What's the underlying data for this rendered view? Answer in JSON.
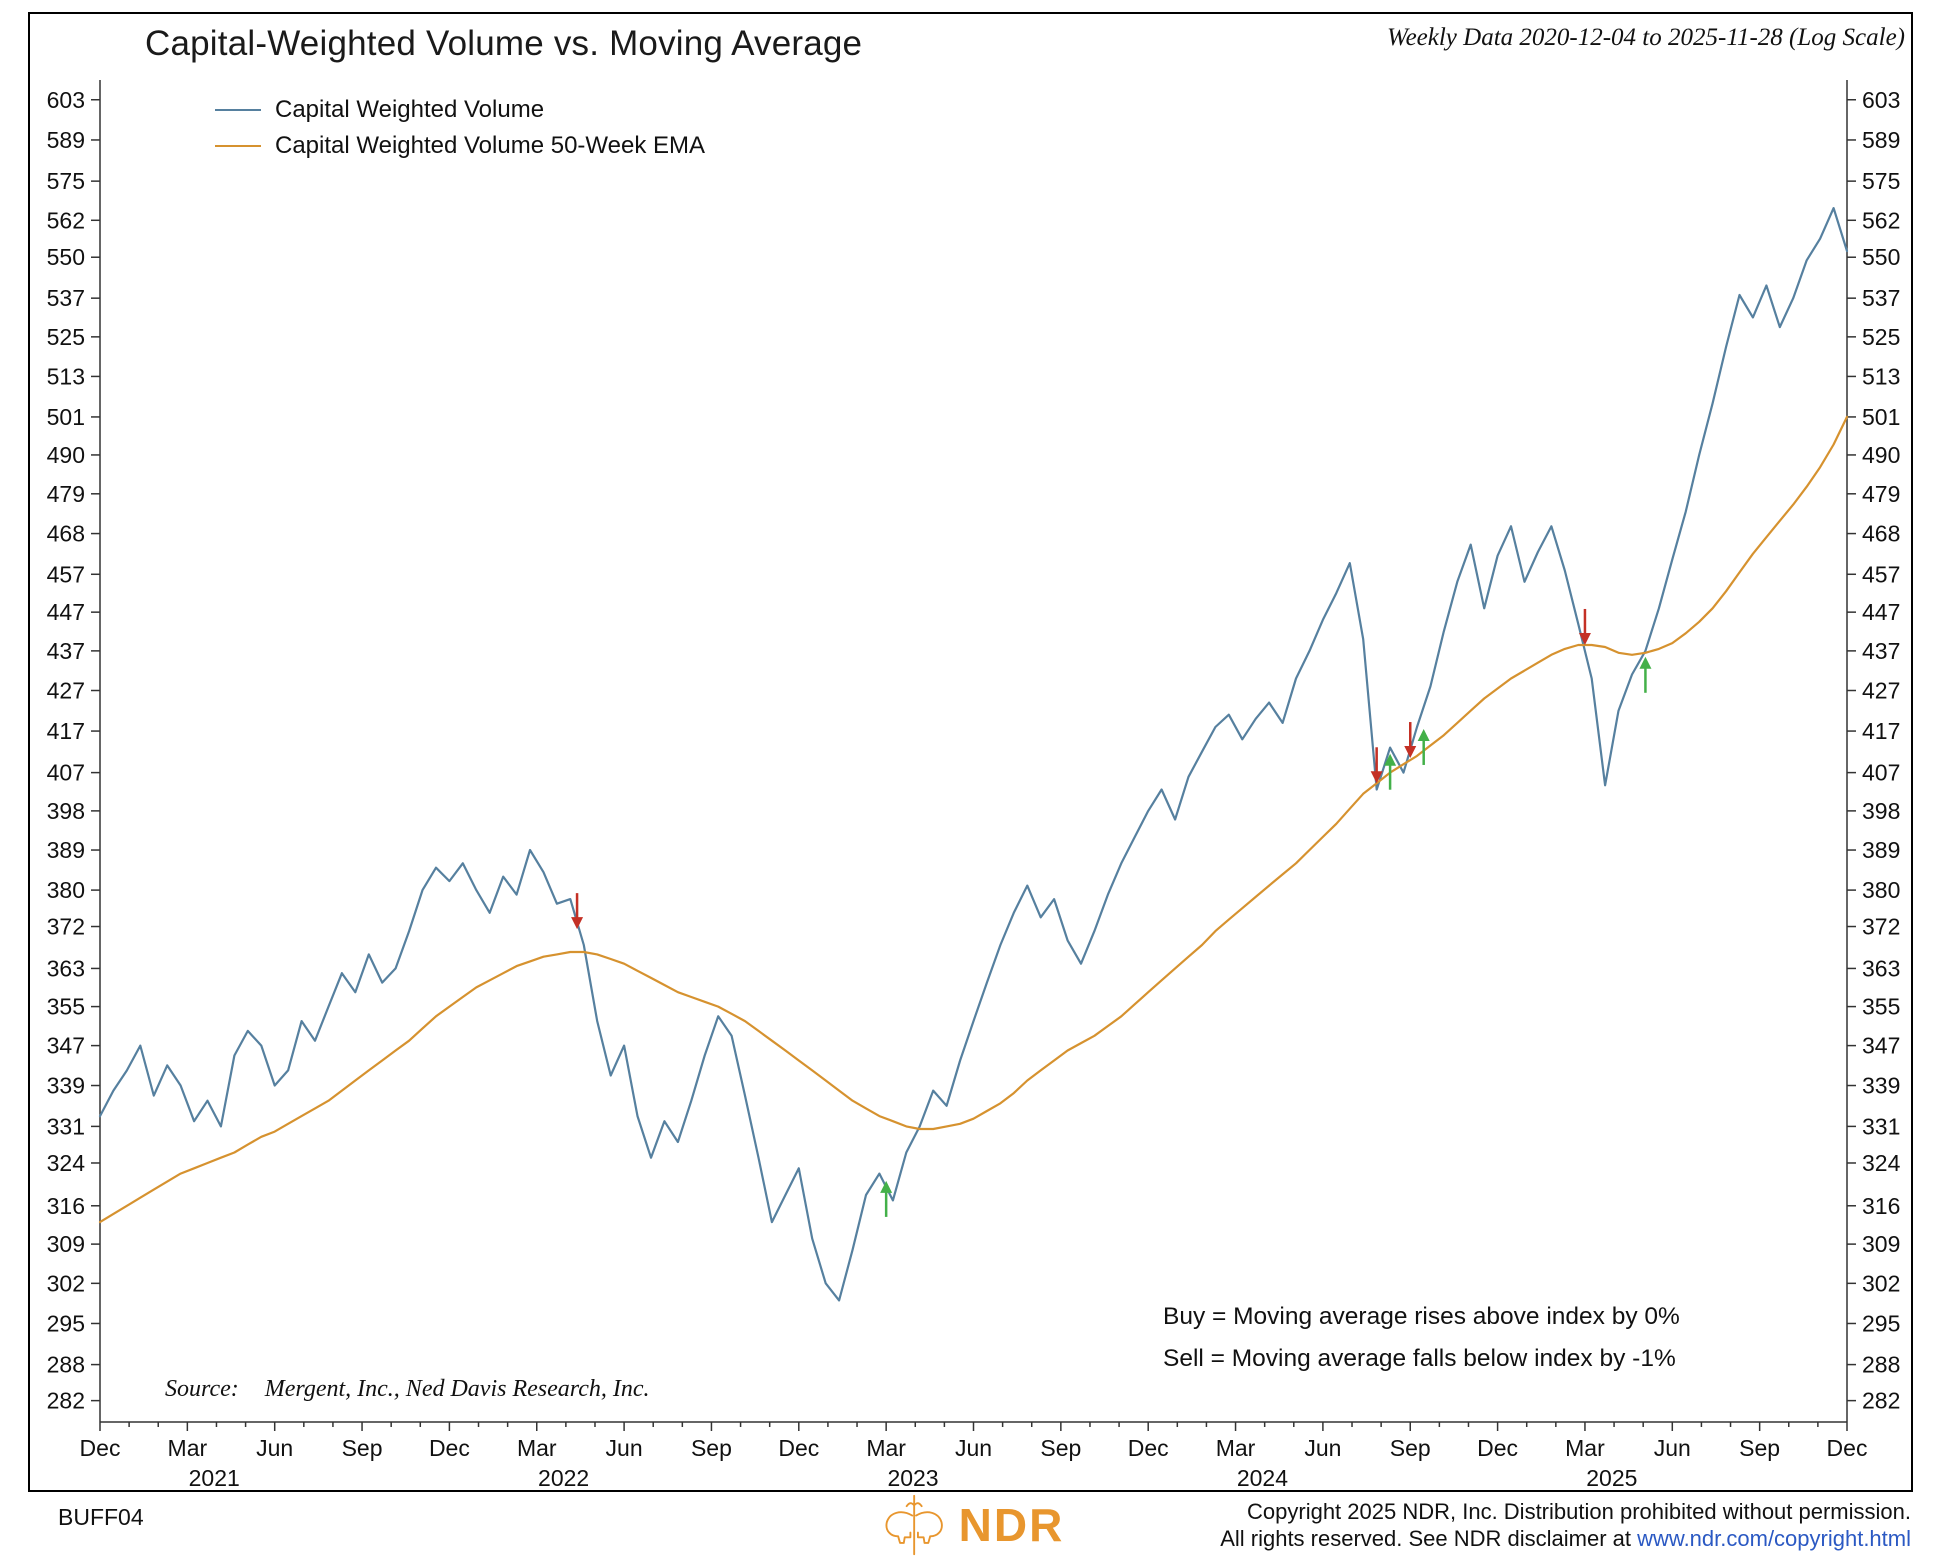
{
  "header": {
    "title": "Capital-Weighted Volume vs. Moving Average",
    "subtitle": "Weekly Data 2020-12-04 to 2025-11-28 (Log Scale)"
  },
  "annotations": {
    "buy_rule": "Buy = Moving average rises above index by 0%",
    "sell_rule": "Sell = Moving average falls below index by -1%",
    "source_label": "Source:",
    "source_text": "Mergent, Inc., Ned Davis Research, Inc."
  },
  "footer": {
    "chart_id": "BUFF04",
    "logo_text": "NDR",
    "logo_color": "#e8962e",
    "copyright_line1": "Copyright 2025 NDR, Inc. Distribution prohibited without permission.",
    "copyright_line2_prefix": "All rights reserved. See NDR disclaimer at ",
    "copyright_link": "www.ndr.com/copyright.html"
  },
  "chart_data": {
    "type": "line",
    "title": "Capital-Weighted Volume vs. Moving Average",
    "subtitle": "Weekly Data 2020-12-04 to 2025-11-28 (Log Scale)",
    "y_scale": "log",
    "ylim": [
      278.5,
      610
    ],
    "x_unit": "weeks since 2020-12-04",
    "x_max_week": 260,
    "grid": false,
    "legend_position": "top-left",
    "y_ticks": [
      603,
      589,
      575,
      562,
      550,
      537,
      525,
      513,
      501,
      490,
      479,
      468,
      457,
      447,
      437,
      427,
      417,
      407,
      398,
      389,
      380,
      372,
      363,
      355,
      347,
      339,
      331,
      324,
      316,
      309,
      302,
      295,
      288,
      282
    ],
    "x_ticks": [
      {
        "week": 0,
        "label": "Dec"
      },
      {
        "week": 13,
        "label": "Mar"
      },
      {
        "week": 26,
        "label": "Jun"
      },
      {
        "week": 39,
        "label": "Sep"
      },
      {
        "week": 52,
        "label": "Dec"
      },
      {
        "week": 65,
        "label": "Mar"
      },
      {
        "week": 78,
        "label": "Jun"
      },
      {
        "week": 91,
        "label": "Sep"
      },
      {
        "week": 104,
        "label": "Dec"
      },
      {
        "week": 117,
        "label": "Mar"
      },
      {
        "week": 130,
        "label": "Jun"
      },
      {
        "week": 143,
        "label": "Sep"
      },
      {
        "week": 156,
        "label": "Dec"
      },
      {
        "week": 169,
        "label": "Mar"
      },
      {
        "week": 182,
        "label": "Jun"
      },
      {
        "week": 195,
        "label": "Sep"
      },
      {
        "week": 208,
        "label": "Dec"
      },
      {
        "week": 221,
        "label": "Mar"
      },
      {
        "week": 234,
        "label": "Jun"
      },
      {
        "week": 247,
        "label": "Sep"
      },
      {
        "week": 260,
        "label": "Dec"
      }
    ],
    "year_labels": [
      {
        "week": 17,
        "label": "2021"
      },
      {
        "week": 69,
        "label": "2022"
      },
      {
        "week": 121,
        "label": "2023"
      },
      {
        "week": 173,
        "label": "2024"
      },
      {
        "week": 225,
        "label": "2025"
      }
    ],
    "series": [
      {
        "name": "Capital Weighted Volume",
        "color": "#56809f",
        "x_start": 0,
        "x_step": 2,
        "values": [
          333,
          338,
          342,
          347,
          337,
          343,
          339,
          332,
          336,
          331,
          345,
          350,
          347,
          339,
          342,
          352,
          348,
          355,
          362,
          358,
          366,
          360,
          363,
          371,
          380,
          385,
          382,
          386,
          380,
          375,
          383,
          379,
          389,
          384,
          377,
          378,
          368,
          352,
          341,
          347,
          333,
          325,
          332,
          328,
          336,
          345,
          353,
          349,
          337,
          325,
          313,
          318,
          323,
          310,
          302,
          299,
          308,
          318,
          322,
          317,
          326,
          331,
          338,
          335,
          344,
          352,
          360,
          368,
          375,
          381,
          374,
          378,
          369,
          364,
          371,
          379,
          386,
          392,
          398,
          403,
          396,
          406,
          412,
          418,
          421,
          415,
          420,
          424,
          419,
          430,
          437,
          445,
          452,
          460,
          440,
          403,
          413,
          407,
          418,
          428,
          442,
          455,
          465,
          448,
          462,
          470,
          455,
          463,
          470,
          458,
          444,
          430,
          404,
          422,
          431,
          437,
          448,
          461,
          474,
          490,
          505,
          522,
          538,
          531,
          541,
          528,
          537,
          549,
          556,
          566,
          552
        ]
      },
      {
        "name": "Capital Weighted Volume 50-Week EMA",
        "color": "#d6922f",
        "x_start": 0,
        "x_step": 2,
        "values": [
          313,
          314.5,
          316,
          317.5,
          319,
          320.5,
          322,
          323,
          324,
          325,
          326,
          327.5,
          329,
          330,
          331.5,
          333,
          334.5,
          336,
          338,
          340,
          342,
          344,
          346,
          348,
          350.5,
          353,
          355,
          357,
          359,
          360.5,
          362,
          363.5,
          364.5,
          365.5,
          366,
          366.5,
          366.5,
          366,
          365,
          364,
          362.5,
          361,
          359.5,
          358,
          357,
          356,
          355,
          353.5,
          352,
          350,
          348,
          346,
          344,
          342,
          340,
          338,
          336,
          334.5,
          333,
          332,
          331,
          330.5,
          330.5,
          331,
          331.5,
          332.5,
          334,
          335.5,
          337.5,
          340,
          342,
          344,
          346,
          347.5,
          349,
          351,
          353,
          355.5,
          358,
          360.5,
          363,
          365.5,
          368,
          371,
          373.5,
          376,
          378.5,
          381,
          383.5,
          386,
          389,
          392,
          395,
          398.5,
          402,
          404.5,
          407,
          409,
          411,
          413.5,
          416,
          419,
          422,
          425,
          427.5,
          430,
          432,
          434,
          436,
          437.5,
          438.5,
          438.5,
          438,
          436.5,
          436,
          436.5,
          437.5,
          439,
          441.5,
          444.5,
          448,
          452.5,
          457.5,
          462.5,
          467,
          471.5,
          476,
          481,
          486.5,
          493,
          501
        ]
      }
    ],
    "signals": [
      {
        "week": 71,
        "value": 371,
        "type": "sell"
      },
      {
        "week": 117,
        "value": 321,
        "type": "buy"
      },
      {
        "week": 190,
        "value": 404,
        "type": "sell"
      },
      {
        "week": 192,
        "value": 412,
        "type": "buy"
      },
      {
        "week": 195,
        "value": 410,
        "type": "sell"
      },
      {
        "week": 197,
        "value": 418,
        "type": "buy"
      },
      {
        "week": 221,
        "value": 438,
        "type": "sell"
      },
      {
        "week": 230,
        "value": 436,
        "type": "buy"
      }
    ],
    "colors": {
      "buy": "#43b049",
      "sell": "#c43025",
      "axis": "#333333",
      "text": "#111111"
    }
  }
}
